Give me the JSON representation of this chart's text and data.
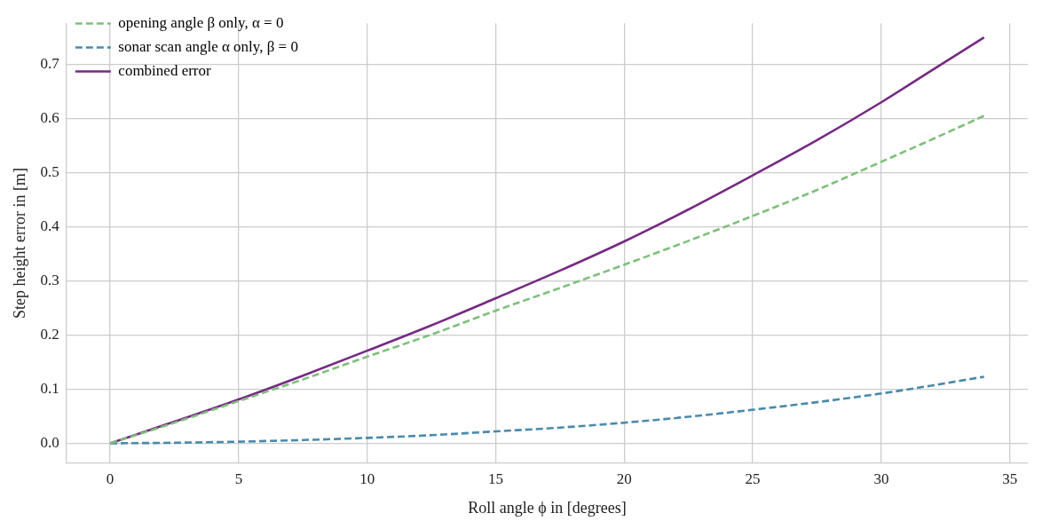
{
  "chart_data": {
    "type": "line",
    "xlabel": "Roll angle ϕ in [degrees]",
    "ylabel": "Step height error in [m]",
    "xlim": [
      -1.7,
      35.7
    ],
    "xticks": [
      0,
      5,
      10,
      15,
      20,
      25,
      30,
      35
    ],
    "ylim": [
      -0.037,
      0.776
    ],
    "yticks": [
      {
        "value": 0,
        "label": "0.0"
      },
      0.1,
      0.2,
      0.3,
      0.4,
      0.5,
      0.6,
      0.7
    ],
    "grid": true,
    "legend": "top left",
    "marker": "none",
    "series": [
      {
        "name": "opening angle β only, α = 0",
        "color": "#7fbf7b",
        "line_style": "dashed",
        "x": [
          0,
          2.5,
          5,
          7.5,
          10,
          12.5,
          15,
          17.5,
          20,
          22.5,
          25,
          27.5,
          30,
          32,
          34
        ],
        "values": [
          0,
          0.038,
          0.078,
          0.118,
          0.16,
          0.201,
          0.245,
          0.287,
          0.33,
          0.374,
          0.42,
          0.468,
          0.52,
          0.562,
          0.605
        ]
      },
      {
        "name": "sonar scan angle α only, β = 0",
        "color": "#4a8aab",
        "line_style": "dashed",
        "x": [
          0,
          2.5,
          5,
          7.5,
          10,
          12.5,
          15,
          17.5,
          20,
          22.5,
          25,
          27.5,
          30,
          32,
          34
        ],
        "values": [
          0,
          0.001,
          0.003,
          0.006,
          0.01,
          0.015,
          0.022,
          0.029,
          0.038,
          0.049,
          0.062,
          0.076,
          0.092,
          0.107,
          0.123
        ]
      },
      {
        "name": "combined error",
        "color": "#762a83",
        "line_style": "solid",
        "x": [
          0,
          2.5,
          5,
          7.5,
          10,
          12.5,
          15,
          17.5,
          20,
          22.5,
          25,
          27.5,
          30,
          32,
          34
        ],
        "values": [
          0,
          0.04,
          0.081,
          0.125,
          0.171,
          0.218,
          0.268,
          0.319,
          0.373,
          0.432,
          0.495,
          0.56,
          0.63,
          0.69,
          0.75
        ]
      }
    ]
  }
}
